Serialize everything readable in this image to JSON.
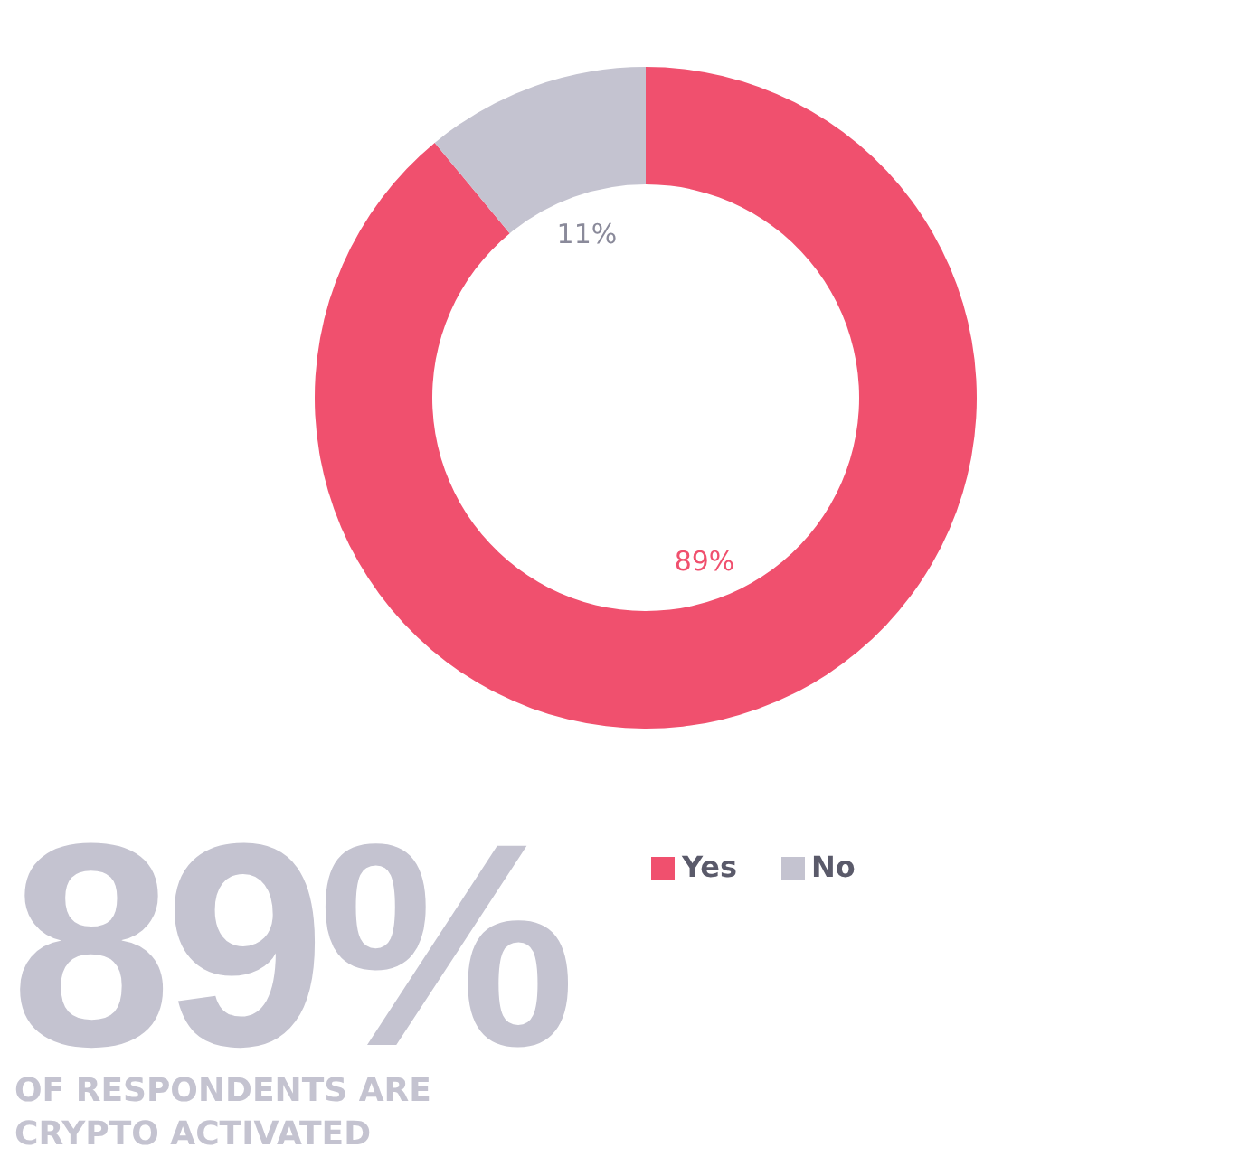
{
  "chart_data": {
    "type": "donut",
    "title": "89%",
    "subtitle": "OF RESPONDENTS ARE CRYPTO ACTIVATED",
    "categories": [
      "Yes",
      "No"
    ],
    "values": [
      89,
      11
    ],
    "colors": [
      "#f0506e",
      "#c4c3d0"
    ],
    "value_labels": [
      "89%",
      "11%"
    ],
    "legend": "bottom"
  }
}
